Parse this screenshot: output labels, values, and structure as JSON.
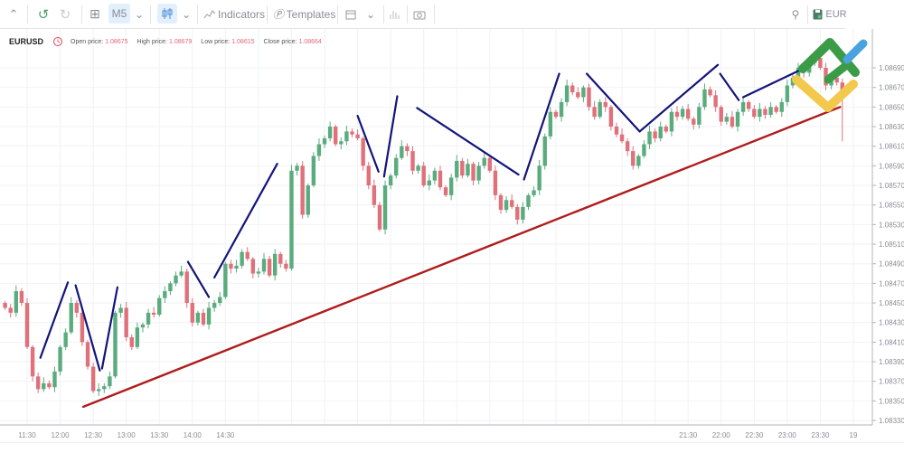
{
  "toolbar": {
    "timeframe": "M5",
    "indicators_label": "Indicators",
    "templates_label": "Templates",
    "symbol_partial": "EUR",
    "icons": [
      "chevron-up-icon",
      "undo-icon",
      "redo-icon",
      "add-icon",
      "chevron-down-icon",
      "candles-icon",
      "indicators-icon",
      "templates-icon",
      "calendar-icon",
      "bars-icon",
      "camera-icon",
      "search-icon",
      "save-icon"
    ]
  },
  "info": {
    "symbol": "EURUSD",
    "open_label": "Open price:",
    "open": "1.08675",
    "high_label": "High price:",
    "high": "1.08679",
    "low_label": "Low price:",
    "low": "1.08615",
    "close_label": "Close price:",
    "close": "1.08664"
  },
  "colors": {
    "up": "#5aac7e",
    "down": "#e0707a",
    "zigzag": "#14147a",
    "trendline": "#b01c1c"
  },
  "chart_data": {
    "type": "candlestick",
    "symbol": "EURUSD",
    "interval": "M5",
    "first_candle_time": "11:10",
    "interval_minutes": 5,
    "close": [
      1.08445,
      1.0844,
      1.08462,
      1.0845,
      1.08405,
      1.08375,
      1.08362,
      1.08368,
      1.08364,
      1.0838,
      1.08405,
      1.0842,
      1.0845,
      1.0844,
      1.0841,
      1.08385,
      1.0836,
      1.08362,
      1.08365,
      1.08375,
      1.0844,
      1.08445,
      1.08415,
      1.08405,
      1.08425,
      1.08428,
      1.0844,
      1.08438,
      1.08455,
      1.08462,
      1.0847,
      1.08478,
      1.08482,
      1.0845,
      1.0843,
      1.0844,
      1.08428,
      1.08445,
      1.0845,
      1.08456,
      1.0849,
      1.08485,
      1.08488,
      1.08502,
      1.08495,
      1.0848,
      1.08482,
      1.08495,
      1.08478,
      1.085,
      1.0849,
      1.08485,
      1.08585,
      1.0859,
      1.0854,
      1.0857,
      1.086,
      1.08612,
      1.08618,
      1.0863,
      1.08612,
      1.08615,
      1.08625,
      1.08622,
      1.08618,
      1.0859,
      1.0857,
      1.0855,
      1.08525,
      1.0857,
      1.0858,
      1.08598,
      1.0861,
      1.08605,
      1.08585,
      1.0859,
      1.0857,
      1.08575,
      1.08585,
      1.08568,
      1.0856,
      1.08578,
      1.08595,
      1.0858,
      1.08592,
      1.08575,
      1.0859,
      1.08598,
      1.08585,
      1.0856,
      1.08545,
      1.08555,
      1.08548,
      1.08535,
      1.08548,
      1.0856,
      1.08565,
      1.0859,
      1.0862,
      1.08645,
      1.0864,
      1.08655,
      1.08672,
      1.08665,
      1.0866,
      1.0867,
      1.0865,
      1.0864,
      1.08655,
      1.0865,
      1.0863,
      1.08622,
      1.08615,
      1.08605,
      1.0859,
      1.086,
      1.08612,
      1.08625,
      1.08618,
      1.0863,
      1.08625,
      1.08645,
      1.0864,
      1.08648,
      1.08638,
      1.08632,
      1.0865,
      1.08668,
      1.08662,
      1.0865,
      1.08635,
      1.0864,
      1.0863,
      1.08645,
      1.08655,
      1.08648,
      1.0864,
      1.08648,
      1.08642,
      1.0865,
      1.08645,
      1.08655,
      1.08672,
      1.0868,
      1.0869,
      1.08685,
      1.08695,
      1.087,
      1.0869,
      1.08672,
      1.0868,
      1.08675,
      1.08664
    ],
    "last_candle": {
      "open": 1.08675,
      "high": 1.08679,
      "low": 1.08615,
      "close": 1.08664
    },
    "ylim": [
      1.0832,
      1.087
    ],
    "y_ticks": [
      "1.08690",
      "1.08670",
      "1.08650",
      "1.08630",
      "1.08610",
      "1.08590",
      "1.08570",
      "1.08550",
      "1.08530",
      "1.08510",
      "1.08490",
      "1.08470",
      "1.08450",
      "1.08430",
      "1.08410",
      "1.08390",
      "1.08370",
      "1.08350",
      "1.08330"
    ],
    "x_ticks": [
      "11:30",
      "12:00",
      "12:30",
      "13:00",
      "13:30",
      "14:00",
      "14:30",
      "21:30",
      "22:00",
      "22:30",
      "23:00",
      "23:30",
      "19"
    ],
    "grid": true,
    "drawings": [
      {
        "type": "zigzag",
        "from": [
          "11:42",
          1.08394
        ],
        "to": [
          "12:07",
          1.08471
        ]
      },
      {
        "type": "zigzag",
        "from": [
          "12:14",
          1.08468
        ],
        "to": [
          "12:36",
          1.08381
        ]
      },
      {
        "type": "zigzag",
        "from": [
          "12:38",
          1.08383
        ],
        "to": [
          "12:52",
          1.08466
        ]
      },
      {
        "type": "zigzag",
        "from": [
          "13:56",
          1.08492
        ],
        "to": [
          "14:15",
          1.08456
        ]
      },
      {
        "type": "zigzag",
        "from": [
          "14:20",
          1.08476
        ],
        "to": [
          "15:17",
          1.08592
        ]
      },
      {
        "type": "zigzag",
        "from": [
          "16:30",
          1.08641
        ],
        "to": [
          "16:49",
          1.08584
        ]
      },
      {
        "type": "zigzag",
        "from": [
          "16:54",
          1.08579
        ],
        "to": [
          "17:06",
          1.08661
        ]
      },
      {
        "type": "zigzag",
        "from": [
          "17:24",
          1.08649
        ],
        "to": [
          "18:56",
          1.08581
        ]
      },
      {
        "type": "zigzag",
        "from": [
          "19:01",
          1.08576
        ],
        "to": [
          "19:33",
          1.08684
        ]
      },
      {
        "type": "zigzag",
        "from": [
          "19:58",
          1.08684
        ],
        "to": [
          "20:46",
          1.08625
        ]
      },
      {
        "type": "zigzag",
        "from": [
          "20:46",
          1.08625
        ],
        "to": [
          "21:57",
          1.08693
        ]
      },
      {
        "type": "zigzag",
        "from": [
          "21:59",
          1.08684
        ],
        "to": [
          "22:16",
          1.08657
        ]
      },
      {
        "type": "zigzag",
        "from": [
          "22:20",
          1.0866
        ],
        "to": [
          "23:16",
          1.0869
        ]
      },
      {
        "type": "trendline",
        "from": [
          "12:21",
          1.08344
        ],
        "to": [
          "23:48",
          1.0865
        ]
      }
    ]
  }
}
